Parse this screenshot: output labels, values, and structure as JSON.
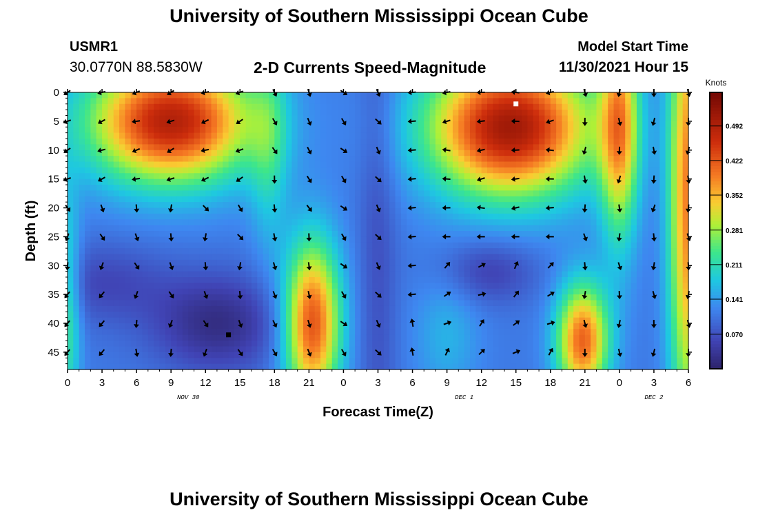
{
  "page": {
    "title": "University of Southern Mississippi Ocean Cube",
    "title_repeat": "University of Southern Mississippi Ocean Cube"
  },
  "station": {
    "id": "USMR1",
    "coords": "30.0770N  88.5830W"
  },
  "model": {
    "label": "Model Start Time",
    "time": "11/30/2021 Hour 15"
  },
  "chart_data": {
    "type": "heatmap",
    "title": "2-D Currents Speed-Magnitude",
    "xlabel": "Forecast Time(Z)",
    "ylabel": "Depth (ft)",
    "x_ticks": [
      "0",
      "3",
      "6",
      "9",
      "12",
      "15",
      "18",
      "21",
      "0",
      "3",
      "6",
      "9",
      "12",
      "15",
      "18",
      "21",
      "0",
      "3",
      "6"
    ],
    "date_labels": [
      {
        "text": "NOV 30",
        "tick_index": 3.5
      },
      {
        "text": "DEC 1",
        "tick_index": 11.5
      },
      {
        "text": "DEC 2",
        "tick_index": 17
      }
    ],
    "y_ticks": [
      0,
      5,
      10,
      15,
      20,
      25,
      30,
      35,
      40,
      45
    ],
    "ylim": [
      0,
      48
    ],
    "xlim_hours": [
      0,
      54
    ],
    "colorbar": {
      "label": "Knots",
      "ticks": [
        "0.492",
        "0.422",
        "0.352",
        "0.281",
        "0.211",
        "0.141",
        "0.070"
      ],
      "range": [
        0.0,
        0.56
      ]
    },
    "markers": [
      {
        "name": "min-marker",
        "hour": 14,
        "depth": 42,
        "color": "#000000"
      },
      {
        "name": "max-marker",
        "hour": 39,
        "depth": 2,
        "color": "#ffffff"
      }
    ]
  }
}
